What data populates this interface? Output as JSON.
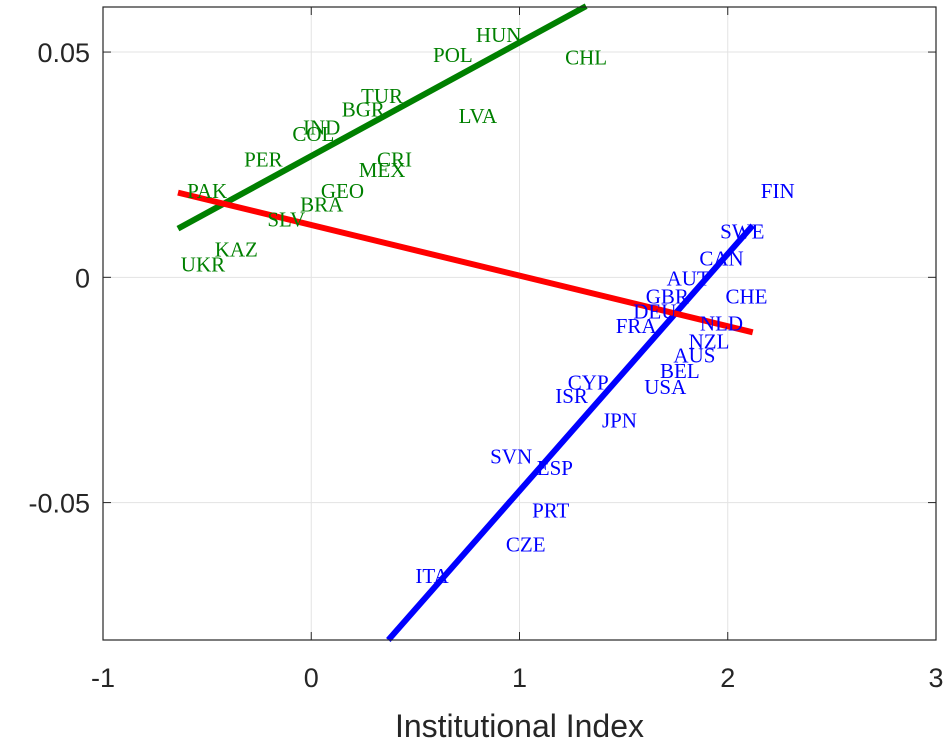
{
  "chart_data": {
    "type": "scatter",
    "title": "",
    "xlabel": "Institutional Index",
    "ylabel": "",
    "xlim": [
      -1,
      3
    ],
    "ylim": [
      -0.0805,
      0.06
    ],
    "xticks": [
      -1,
      0,
      1,
      2,
      3
    ],
    "xtick_labels": [
      "-1",
      "0",
      "1",
      "2",
      "3"
    ],
    "yticks": [
      -0.05,
      0,
      0.05
    ],
    "ytick_labels": [
      "-0.05",
      "0",
      "0.05"
    ],
    "grid": true,
    "legend": "none",
    "series": [
      {
        "color": "#008000",
        "points": [
          {
            "label": "HUN",
            "x": 0.9,
            "y": 0.0538
          },
          {
            "label": "POL",
            "x": 0.68,
            "y": 0.0493
          },
          {
            "label": "CHL",
            "x": 1.32,
            "y": 0.0488
          },
          {
            "label": "TUR",
            "x": 0.34,
            "y": 0.0402
          },
          {
            "label": "BGR",
            "x": 0.25,
            "y": 0.0372
          },
          {
            "label": "LVA",
            "x": 0.8,
            "y": 0.0358
          },
          {
            "label": "IND",
            "x": 0.05,
            "y": 0.0332
          },
          {
            "label": "COL",
            "x": 0.01,
            "y": 0.0318
          },
          {
            "label": "PER",
            "x": -0.23,
            "y": 0.0262
          },
          {
            "label": "CRI",
            "x": 0.4,
            "y": 0.0262
          },
          {
            "label": "MEX",
            "x": 0.34,
            "y": 0.0238
          },
          {
            "label": "GEO",
            "x": 0.15,
            "y": 0.0192
          },
          {
            "label": "PAK",
            "x": -0.5,
            "y": 0.0192
          },
          {
            "label": "BRA",
            "x": 0.05,
            "y": 0.0162
          },
          {
            "label": "SLV",
            "x": -0.12,
            "y": 0.0128
          },
          {
            "label": "KAZ",
            "x": -0.36,
            "y": 0.0062
          },
          {
            "label": "UKR",
            "x": -0.52,
            "y": 0.0028
          }
        ],
        "fit_line": {
          "x": [
            -0.64,
            1.32
          ],
          "y": [
            0.0108,
            0.0602
          ]
        }
      },
      {
        "color": "#0000ff",
        "points": [
          {
            "label": "FIN",
            "x": 2.24,
            "y": 0.0192
          },
          {
            "label": "SWE",
            "x": 2.07,
            "y": 0.0102
          },
          {
            "label": "CAN",
            "x": 1.97,
            "y": 0.0042
          },
          {
            "label": "AUT",
            "x": 1.81,
            "y": -0.0003
          },
          {
            "label": "GBR",
            "x": 1.71,
            "y": -0.0043
          },
          {
            "label": "CHE",
            "x": 2.09,
            "y": -0.0043
          },
          {
            "label": "DEU",
            "x": 1.65,
            "y": -0.0076
          },
          {
            "label": "NLD",
            "x": 1.97,
            "y": -0.0103
          },
          {
            "label": "FRA",
            "x": 1.56,
            "y": -0.0108
          },
          {
            "label": "NZL",
            "x": 1.91,
            "y": -0.0143
          },
          {
            "label": "AUS",
            "x": 1.84,
            "y": -0.0173
          },
          {
            "label": "BEL",
            "x": 1.77,
            "y": -0.0208
          },
          {
            "label": "USA",
            "x": 1.7,
            "y": -0.0243
          },
          {
            "label": "CYP",
            "x": 1.33,
            "y": -0.0233
          },
          {
            "label": "ISR",
            "x": 1.25,
            "y": -0.0263
          },
          {
            "label": "JPN",
            "x": 1.48,
            "y": -0.0318
          },
          {
            "label": "SVN",
            "x": 0.96,
            "y": -0.0398
          },
          {
            "label": "ESP",
            "x": 1.17,
            "y": -0.0423
          },
          {
            "label": "PRT",
            "x": 1.15,
            "y": -0.0518
          },
          {
            "label": "CZE",
            "x": 1.03,
            "y": -0.0593
          },
          {
            "label": "ITA",
            "x": 0.58,
            "y": -0.0663
          }
        ],
        "fit_line": {
          "x": [
            0.37,
            2.12
          ],
          "y": [
            -0.0805,
            0.0115
          ]
        }
      }
    ],
    "lines": [
      {
        "color": "#ff0000",
        "x": [
          -0.64,
          2.12
        ],
        "y": [
          0.0188,
          -0.0122
        ]
      }
    ]
  }
}
